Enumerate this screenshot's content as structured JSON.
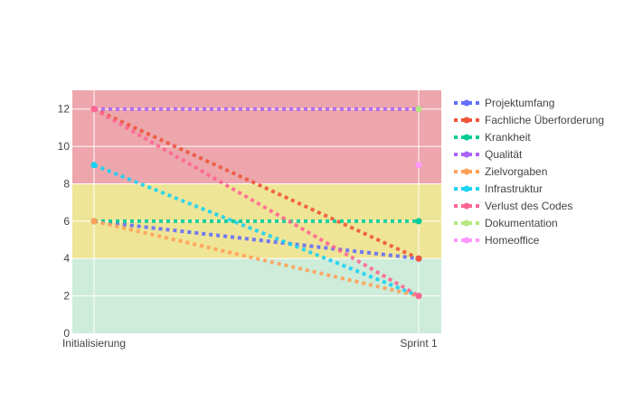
{
  "chart_data": {
    "type": "line",
    "title": "",
    "xlabel": "",
    "ylabel": "",
    "categories": [
      "Initialisierung",
      "Sprint 1"
    ],
    "ylim": [
      0,
      13
    ],
    "yticks": [
      0,
      2,
      4,
      6,
      8,
      10,
      12
    ],
    "grid": true,
    "legend_position": "right",
    "bands": [
      {
        "from": 0,
        "to": 4,
        "color": "#cdecd9"
      },
      {
        "from": 4,
        "to": 8,
        "color": "#efe596"
      },
      {
        "from": 8,
        "to": 13,
        "color": "#eca6ac"
      }
    ],
    "series": [
      {
        "name": "Projektumfang",
        "color": "#636efa",
        "values": [
          6,
          4
        ]
      },
      {
        "name": "Fachliche Überforderung",
        "color": "#ef553b",
        "values": [
          12,
          4
        ]
      },
      {
        "name": "Krankheit",
        "color": "#00cc96",
        "values": [
          6,
          6
        ]
      },
      {
        "name": "Qualität",
        "color": "#ab63fa",
        "values": [
          12,
          12
        ]
      },
      {
        "name": "Zielvorgaben",
        "color": "#ffa15a",
        "values": [
          6,
          2
        ]
      },
      {
        "name": "Infrastruktur",
        "color": "#19d3f3",
        "values": [
          9,
          2
        ]
      },
      {
        "name": "Verlust des Codes",
        "color": "#ff6692",
        "values": [
          12,
          2
        ]
      },
      {
        "name": "Dokumentation",
        "color": "#b6e880",
        "values": [
          null,
          12
        ]
      },
      {
        "name": "Homeoffice",
        "color": "#ff97ff",
        "values": [
          null,
          9
        ]
      }
    ]
  }
}
